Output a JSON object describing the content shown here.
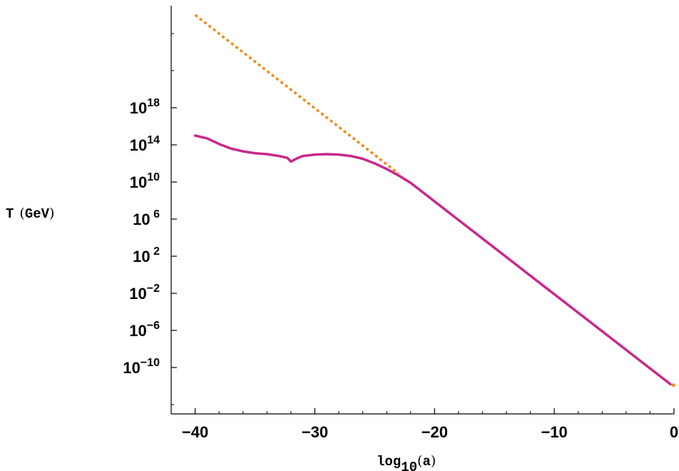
{
  "chart_data": {
    "type": "line",
    "xlabel": "log10(a)",
    "ylabel": "T (GeV)",
    "xlim": [
      -42,
      0
    ],
    "ylim": [
      -15,
      29
    ],
    "y_scale": "log",
    "x_ticks": [
      {
        "value": -40,
        "label": "−40"
      },
      {
        "value": -30,
        "label": "−30"
      },
      {
        "value": -20,
        "label": "−20"
      },
      {
        "value": -10,
        "label": "−10"
      },
      {
        "value": 0,
        "label": "0"
      }
    ],
    "y_ticks": [
      {
        "value": 18,
        "base": "10",
        "exp": "18"
      },
      {
        "value": 14,
        "base": "10",
        "exp": "14"
      },
      {
        "value": 10,
        "base": "10",
        "exp": "10"
      },
      {
        "value": 6,
        "base": "10",
        "exp": " 6"
      },
      {
        "value": 2,
        "base": "10",
        "exp": " 2"
      },
      {
        "value": -2,
        "base": "10",
        "exp": "−2"
      },
      {
        "value": -6,
        "base": "10",
        "exp": "−6"
      },
      {
        "value": -10,
        "base": "10",
        "exp": "−10"
      }
    ],
    "series": [
      {
        "style": "dotted",
        "color": "#F28A1B",
        "x": [
          -40,
          -23
        ],
        "y": [
          28,
          10.9
        ]
      },
      {
        "style": "solid",
        "color": "#C8288C",
        "x": [
          -40,
          -39,
          -38,
          -37,
          -36,
          -35,
          -34,
          -33,
          -32.3,
          -32,
          -31.5,
          -31,
          -30,
          -29,
          -28,
          -27,
          -26,
          -25,
          -24,
          -23,
          -22,
          -20,
          -15,
          -10,
          -5,
          -0.3
        ],
        "y": [
          15.0,
          14.7,
          14.1,
          13.6,
          13.3,
          13.1,
          13.0,
          12.8,
          12.6,
          12.2,
          12.55,
          12.8,
          12.95,
          13.0,
          12.95,
          12.8,
          12.5,
          12.0,
          11.4,
          10.7,
          9.9,
          7.9,
          2.9,
          -2.1,
          -7.1,
          -11.8
        ]
      }
    ]
  }
}
